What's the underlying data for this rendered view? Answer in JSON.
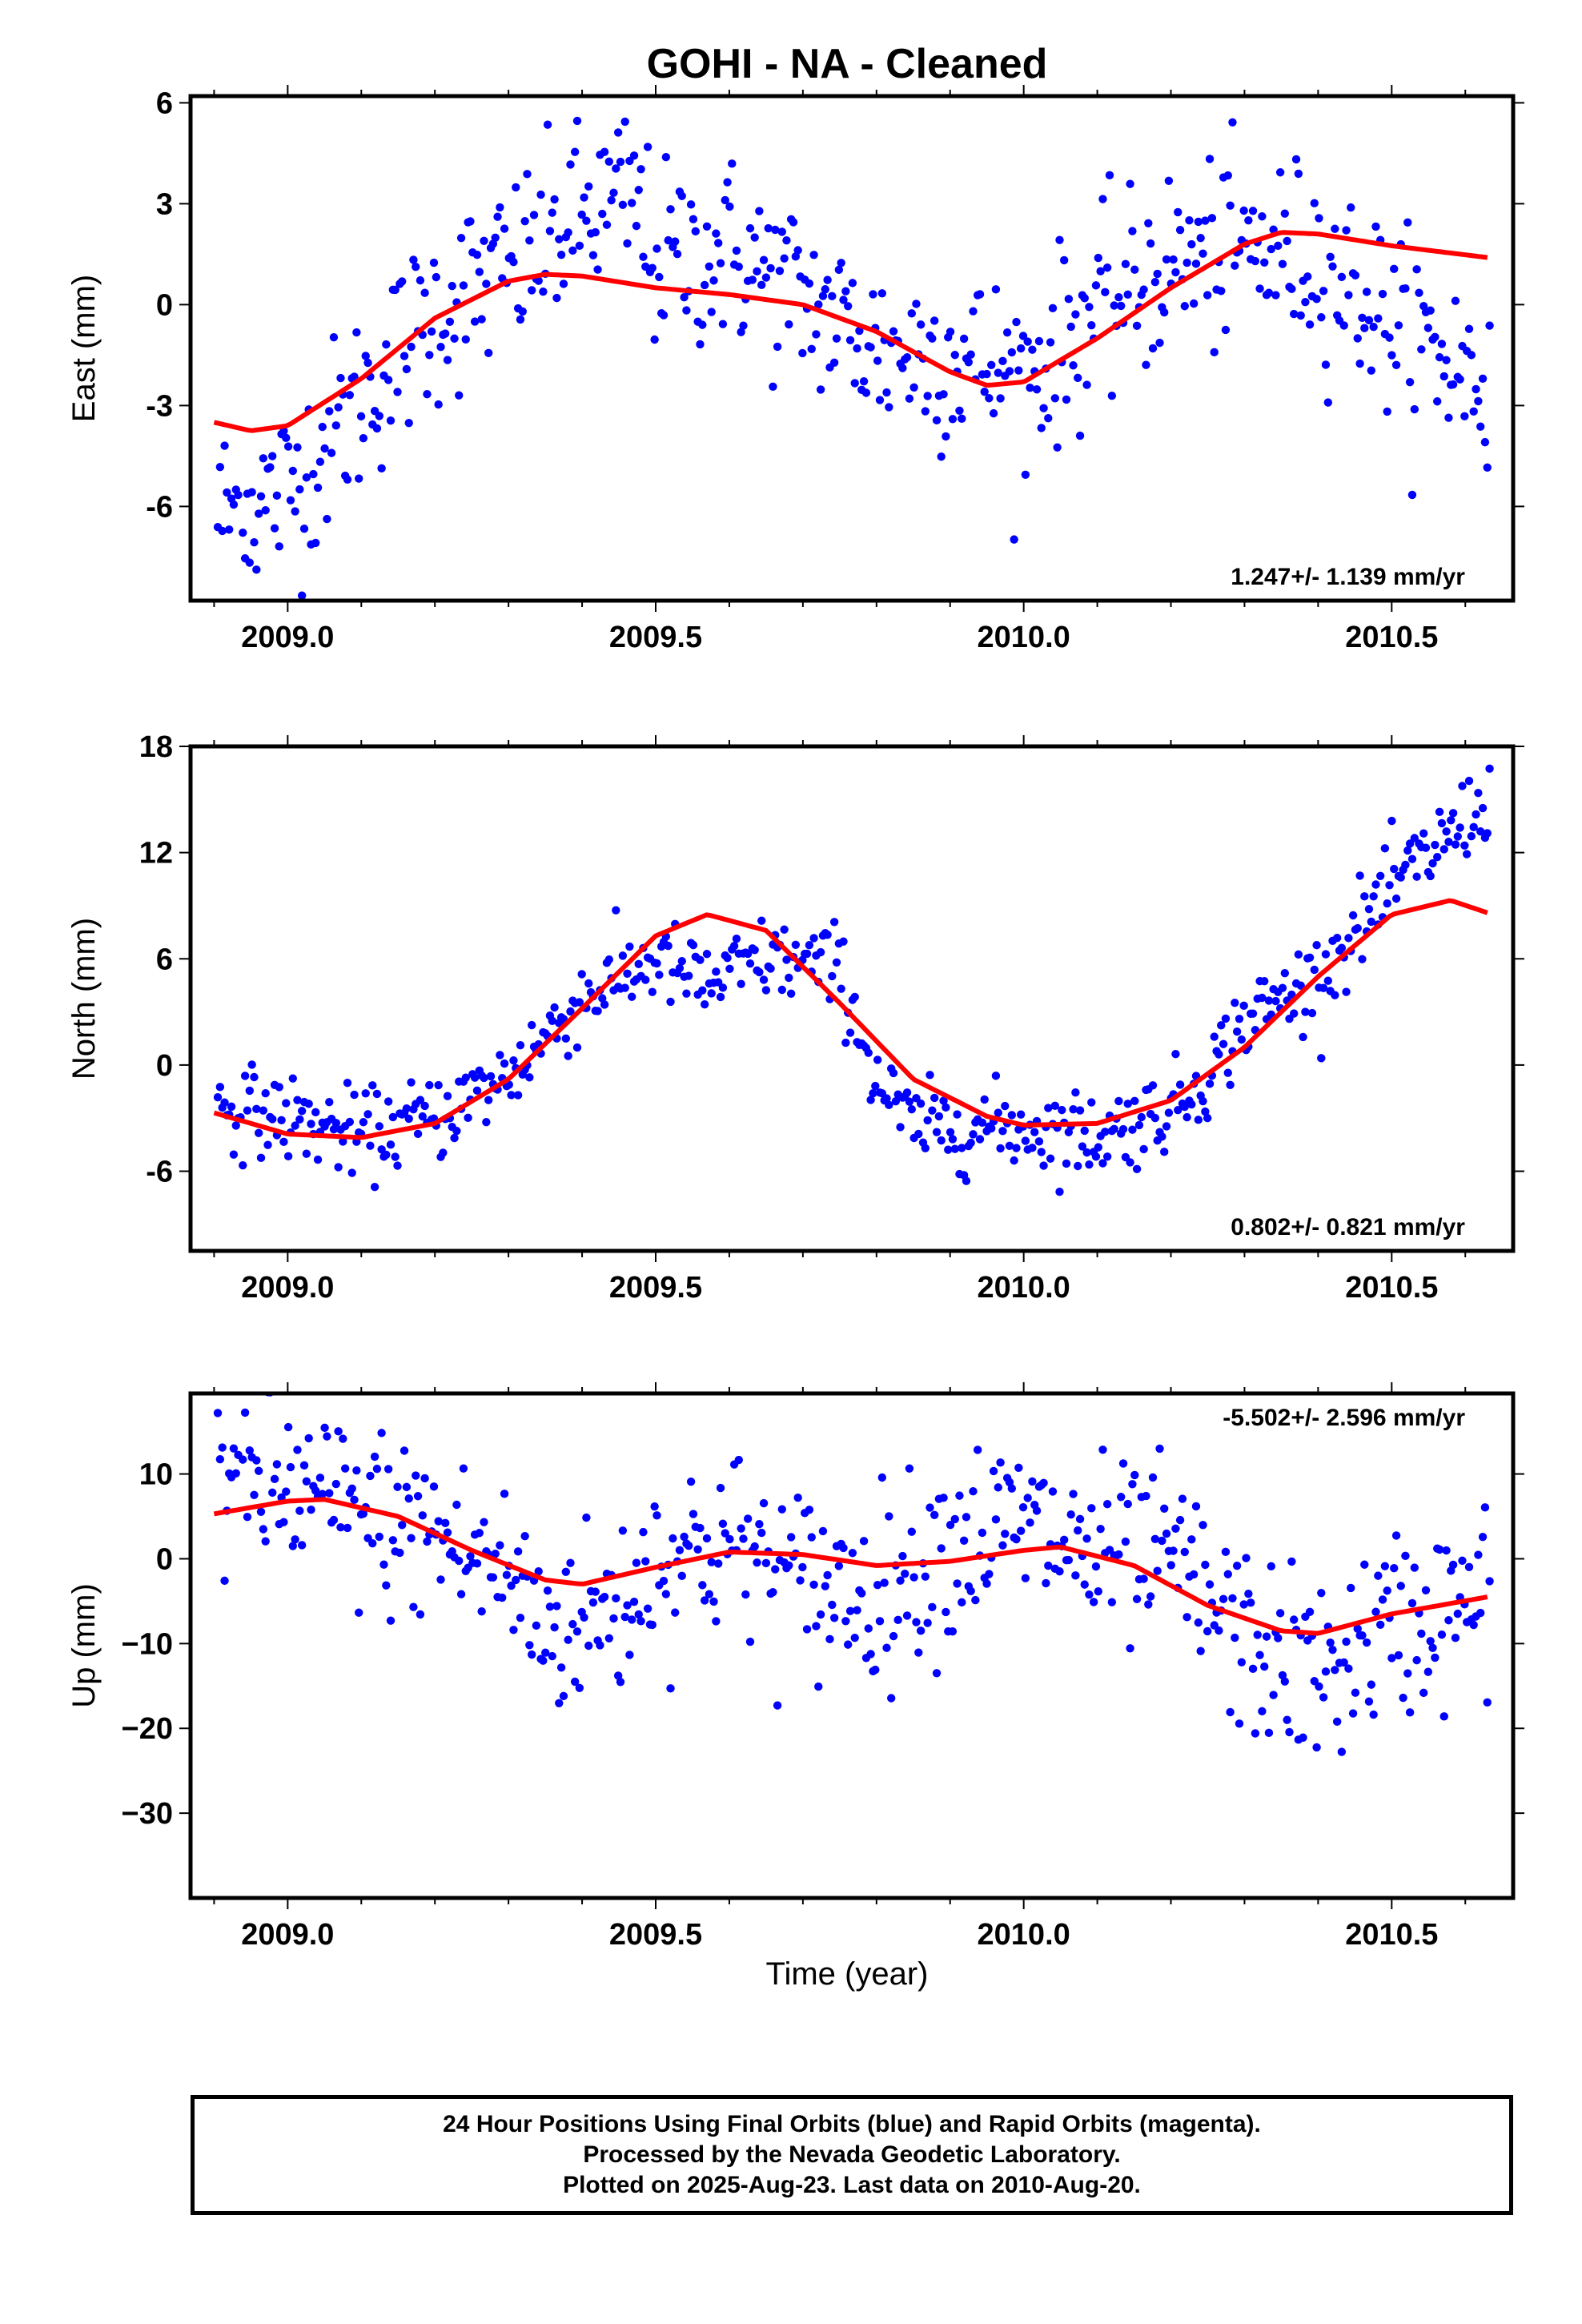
{
  "title": "GOHI  - NA - Cleaned",
  "footer": {
    "line1": "24 Hour Positions Using Final Orbits (blue) and Rapid Orbits (magenta).",
    "line2": "Processed by the Nevada Geodetic Laboratory.",
    "line3": "Plotted on 2025-Aug-23. Last data on 2010-Aug-20."
  },
  "colors": {
    "points": "#0000ff",
    "fit": "#ff0000",
    "frame": "#000000"
  },
  "xlabel": "Time (year)",
  "chart_data": [
    {
      "type": "scatter",
      "ylabel": "East (mm)",
      "rate_text": "1.247+/- 1.139 mm/yr",
      "rate_position": "bottom-right",
      "xlim": [
        2008.868,
        2010.665
      ],
      "ylim": [
        -8.8,
        6.2
      ],
      "xticks": [
        "2009.0",
        "2009.5",
        "2010.0",
        "2010.5"
      ],
      "yticks": [
        "-6",
        "-3",
        "0",
        "3",
        "6"
      ],
      "fit_points": [
        [
          2008.9,
          -3.5
        ],
        [
          2008.95,
          -3.75
        ],
        [
          2009.0,
          -3.6
        ],
        [
          2009.1,
          -2.2
        ],
        [
          2009.2,
          -0.4
        ],
        [
          2009.3,
          0.7
        ],
        [
          2009.35,
          0.9
        ],
        [
          2009.4,
          0.85
        ],
        [
          2009.5,
          0.5
        ],
        [
          2009.6,
          0.3
        ],
        [
          2009.7,
          0.0
        ],
        [
          2009.8,
          -0.8
        ],
        [
          2009.9,
          -2.0
        ],
        [
          2009.95,
          -2.4
        ],
        [
          2010.0,
          -2.3
        ],
        [
          2010.1,
          -1.0
        ],
        [
          2010.2,
          0.5
        ],
        [
          2010.3,
          1.8
        ],
        [
          2010.35,
          2.15
        ],
        [
          2010.4,
          2.1
        ],
        [
          2010.5,
          1.75
        ],
        [
          2010.63,
          1.4
        ]
      ],
      "scatter_anchors": [
        [
          2008.9,
          -6.2
        ],
        [
          2008.95,
          -6.0
        ],
        [
          2009.0,
          -5.5
        ],
        [
          2009.1,
          -2.8
        ],
        [
          2009.2,
          -0.2
        ],
        [
          2009.3,
          1.0
        ],
        [
          2009.4,
          2.6
        ],
        [
          2009.47,
          3.2
        ],
        [
          2009.5,
          1.3
        ],
        [
          2009.6,
          1.6
        ],
        [
          2009.7,
          0.2
        ],
        [
          2009.8,
          -1.3
        ],
        [
          2009.9,
          -1.5
        ],
        [
          2010.0,
          -2.2
        ],
        [
          2010.1,
          -0.2
        ],
        [
          2010.2,
          1.2
        ],
        [
          2010.3,
          1.6
        ],
        [
          2010.4,
          1.4
        ],
        [
          2010.5,
          -0.5
        ],
        [
          2010.63,
          -2.4
        ]
      ],
      "scatter_sd": 1.4
    },
    {
      "type": "scatter",
      "ylabel": "North (mm)",
      "rate_text": "0.802+/- 0.821 mm/yr",
      "rate_position": "bottom-right",
      "xlim": [
        2008.868,
        2010.665
      ],
      "ylim": [
        -10.5,
        18.0
      ],
      "xticks": [
        "2009.0",
        "2009.5",
        "2010.0",
        "2010.5"
      ],
      "yticks": [
        "-6",
        "0",
        "6",
        "12",
        "18"
      ],
      "fit_points": [
        [
          2008.9,
          -2.7
        ],
        [
          2009.0,
          -3.9
        ],
        [
          2009.1,
          -4.1
        ],
        [
          2009.2,
          -3.3
        ],
        [
          2009.3,
          -0.8
        ],
        [
          2009.4,
          3.2
        ],
        [
          2009.5,
          7.3
        ],
        [
          2009.57,
          8.5
        ],
        [
          2009.65,
          7.6
        ],
        [
          2009.75,
          3.5
        ],
        [
          2009.85,
          -0.8
        ],
        [
          2009.95,
          -2.9
        ],
        [
          2010.0,
          -3.4
        ],
        [
          2010.1,
          -3.3
        ],
        [
          2010.2,
          -2.0
        ],
        [
          2010.3,
          1.0
        ],
        [
          2010.4,
          5.0
        ],
        [
          2010.5,
          8.5
        ],
        [
          2010.58,
          9.3
        ],
        [
          2010.63,
          8.6
        ]
      ],
      "scatter_anchors": [
        [
          2008.9,
          -2.2
        ],
        [
          2009.0,
          -3.0
        ],
        [
          2009.1,
          -4.0
        ],
        [
          2009.2,
          -3.0
        ],
        [
          2009.3,
          -0.6
        ],
        [
          2009.4,
          3.8
        ],
        [
          2009.5,
          6.0
        ],
        [
          2009.57,
          4.5
        ],
        [
          2009.65,
          6.0
        ],
        [
          2009.75,
          5.5
        ],
        [
          2009.8,
          -1.0
        ],
        [
          2009.85,
          -3.5
        ],
        [
          2010.0,
          -3.5
        ],
        [
          2010.1,
          -4.0
        ],
        [
          2010.2,
          -2.5
        ],
        [
          2010.25,
          -0.5
        ],
        [
          2010.3,
          2.5
        ],
        [
          2010.4,
          5.0
        ],
        [
          2010.5,
          10.0
        ],
        [
          2010.63,
          15.0
        ]
      ],
      "scatter_sd": 1.2
    },
    {
      "type": "scatter",
      "ylabel": "Up (mm)",
      "rate_text": "-5.502+/- 2.596 mm/yr",
      "rate_position": "top-right",
      "xlim": [
        2008.868,
        2010.665
      ],
      "ylim": [
        -40.0,
        19.5
      ],
      "xticks": [
        "2009.0",
        "2009.5",
        "2010.0",
        "2010.5"
      ],
      "yticks": [
        "10",
        "0",
        "−10",
        "−20",
        "−30"
      ],
      "fit_points": [
        [
          2008.9,
          5.3
        ],
        [
          2009.0,
          6.8
        ],
        [
          2009.05,
          7.0
        ],
        [
          2009.15,
          5.0
        ],
        [
          2009.25,
          1.0
        ],
        [
          2009.35,
          -2.5
        ],
        [
          2009.4,
          -3.0
        ],
        [
          2009.5,
          -1.0
        ],
        [
          2009.6,
          0.8
        ],
        [
          2009.7,
          0.5
        ],
        [
          2009.8,
          -0.8
        ],
        [
          2009.9,
          -0.3
        ],
        [
          2010.0,
          1.0
        ],
        [
          2010.05,
          1.4
        ],
        [
          2010.15,
          -0.8
        ],
        [
          2010.25,
          -5.5
        ],
        [
          2010.35,
          -8.5
        ],
        [
          2010.4,
          -8.8
        ],
        [
          2010.5,
          -6.5
        ],
        [
          2010.63,
          -4.5
        ]
      ],
      "scatter_anchors": [
        [
          2008.9,
          10.0
        ],
        [
          2009.0,
          8.0
        ],
        [
          2009.1,
          5.0
        ],
        [
          2009.2,
          3.0
        ],
        [
          2009.3,
          -2.0
        ],
        [
          2009.35,
          -8.0
        ],
        [
          2009.45,
          -6.0
        ],
        [
          2009.5,
          0.0
        ],
        [
          2009.6,
          2.0
        ],
        [
          2009.7,
          -3.0
        ],
        [
          2009.8,
          -4.0
        ],
        [
          2009.9,
          2.0
        ],
        [
          2010.0,
          4.0
        ],
        [
          2010.1,
          0.0
        ],
        [
          2010.2,
          0.0
        ],
        [
          2010.3,
          -10.0
        ],
        [
          2010.4,
          -14.0
        ],
        [
          2010.5,
          -8.0
        ],
        [
          2010.63,
          -5.0
        ]
      ],
      "scatter_sd": 5.5
    }
  ]
}
